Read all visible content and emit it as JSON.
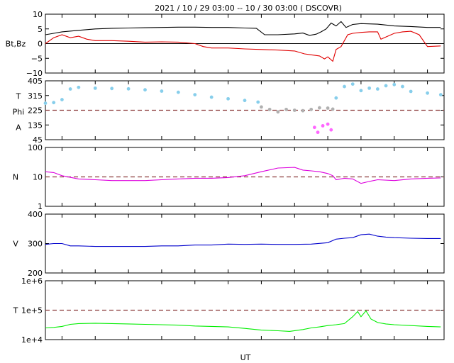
{
  "title": "2021 / 10 / 29   03:00 -- 10 / 30   03:00 ( DSCOVR)",
  "xlabel": "UT",
  "colors": {
    "bt": "#000000",
    "bz": "#e00000",
    "temp": "#87ceeb",
    "phi_mid": "#b0b0b0",
    "phi_low": "#ff66ff",
    "density": "#dd00dd",
    "speed": "#0000cc",
    "thermal": "#00ee00",
    "refline": "#8b3a3a"
  },
  "chart_data": [
    {
      "type": "line",
      "panel": "magnetic",
      "ylabel": "Bt,Bz",
      "ylim": [
        -10,
        10
      ],
      "yticks": [
        "10",
        "5",
        "0",
        "−5",
        "−10"
      ],
      "xlim": [
        3,
        27
      ],
      "xticks": [
        "4",
        "6",
        "8",
        "10",
        "12",
        "14",
        "16",
        "18",
        "20",
        "22",
        "0",
        "2"
      ],
      "refline": 0,
      "series": [
        {
          "key": "bt",
          "x": [
            3,
            3.5,
            4,
            5,
            6,
            7,
            8,
            9,
            10,
            11,
            12,
            13,
            14,
            15,
            15.7,
            16.2,
            17,
            18,
            18.5,
            18.9,
            19.3,
            19.6,
            19.9,
            20.2,
            20.5,
            20.8,
            21.1,
            21.5,
            22,
            23,
            24,
            25,
            26,
            26.8
          ],
          "y": [
            3,
            3.5,
            4,
            4.5,
            5,
            5.2,
            5.3,
            5.4,
            5.5,
            5.6,
            5.6,
            5.5,
            5.5,
            5.3,
            5.2,
            3,
            3,
            3.3,
            3.6,
            2.8,
            3.2,
            4,
            5,
            7,
            6,
            7.5,
            5.5,
            6.5,
            6.8,
            6.6,
            6,
            5.8,
            5.5,
            5.5
          ]
        },
        {
          "key": "bz",
          "x": [
            3,
            3.5,
            4,
            4.5,
            5,
            5.5,
            6,
            7,
            8,
            9,
            10,
            11,
            12,
            12.5,
            13,
            14,
            15,
            16,
            17,
            18,
            18.6,
            19,
            19.5,
            19.8,
            20,
            20.3,
            20.5,
            20.8,
            21,
            21.2,
            21.5,
            22,
            22.5,
            23,
            23.2,
            24,
            24.5,
            25,
            25.5,
            26,
            26.8
          ],
          "y": [
            0,
            2,
            3,
            2,
            2.5,
            1.5,
            1,
            1,
            0.8,
            0.5,
            0.6,
            0.5,
            0,
            -1,
            -1.5,
            -1.5,
            -1.8,
            -2,
            -2.2,
            -2.5,
            -3.5,
            -3.8,
            -4.2,
            -5.2,
            -4.5,
            -6,
            -2,
            -1,
            1,
            3,
            3.5,
            3.8,
            4,
            4,
            1.5,
            3.5,
            4,
            4.2,
            3,
            -1,
            -0.8
          ]
        }
      ]
    },
    {
      "type": "scatter",
      "panel": "temperature-phi",
      "ylabel_lines": [
        "T",
        "Phi",
        "A"
      ],
      "ylim": [
        45,
        405
      ],
      "yticks": [
        "405",
        "315",
        "225",
        "135",
        "45"
      ],
      "xlim": [
        3,
        27
      ],
      "refline": 225,
      "series": [
        {
          "key": "temp",
          "x": [
            3,
            3.5,
            4,
            4.5,
            5,
            6,
            7,
            8,
            9,
            10,
            11,
            12,
            13,
            14,
            15,
            15.8,
            20.5,
            21,
            21.5,
            22,
            22.5,
            23,
            23.5,
            24,
            24.5,
            25,
            26,
            26.8
          ],
          "y": [
            268,
            272,
            290,
            355,
            365,
            360,
            358,
            356,
            350,
            342,
            335,
            320,
            305,
            295,
            285,
            275,
            300,
            370,
            385,
            345,
            360,
            355,
            375,
            382,
            370,
            340,
            330,
            320
          ]
        },
        {
          "key": "phi_mid",
          "x": [
            16,
            16.5,
            17,
            17.5,
            18,
            18.5,
            19,
            19.5,
            20,
            20.3
          ],
          "y": [
            245,
            230,
            215,
            230,
            225,
            222,
            230,
            240,
            238,
            232
          ]
        },
        {
          "key": "phi_low",
          "x": [
            19.2,
            19.4,
            19.7,
            20,
            20.2
          ],
          "y": [
            120,
            90,
            130,
            140,
            105
          ]
        }
      ]
    },
    {
      "type": "line",
      "panel": "density",
      "ylabel": "N",
      "ylim": [
        1,
        100
      ],
      "yticks": [
        "100",
        "10",
        "1"
      ],
      "scale": "log",
      "xlim": [
        3,
        27
      ],
      "refline": 10,
      "series": [
        {
          "key": "density",
          "x": [
            3,
            3.5,
            4,
            5,
            6,
            7,
            8,
            9,
            10,
            11,
            12,
            13,
            14,
            15,
            16,
            17,
            18,
            18.5,
            19,
            19.5,
            20,
            20.3,
            20.5,
            21,
            21.5,
            22,
            22.5,
            23,
            24,
            25,
            26,
            26.8
          ],
          "y": [
            15,
            14,
            11,
            8.5,
            8,
            7.5,
            7.5,
            7.5,
            8,
            8.5,
            9,
            9,
            9.5,
            11,
            15,
            20,
            21,
            17,
            16,
            15,
            13,
            11,
            8,
            9,
            8.5,
            6,
            7,
            8,
            7.5,
            8.5,
            9,
            9.2
          ]
        }
      ]
    },
    {
      "type": "line",
      "panel": "speed",
      "ylabel": "V",
      "ylim": [
        200,
        400
      ],
      "yticks": [
        "400",
        "300",
        "200"
      ],
      "xlim": [
        3,
        27
      ],
      "series": [
        {
          "key": "speed",
          "x": [
            3,
            3.5,
            4,
            4.5,
            5,
            6,
            7,
            8,
            9,
            10,
            11,
            12,
            13,
            14,
            15,
            16,
            17,
            18,
            19,
            20,
            20.5,
            21,
            21.5,
            22,
            22.5,
            23,
            23.5,
            24,
            25,
            26,
            26.8
          ],
          "y": [
            297,
            300,
            300,
            292,
            292,
            290,
            290,
            290,
            290,
            292,
            292,
            295,
            295,
            298,
            297,
            298,
            297,
            297,
            298,
            303,
            315,
            318,
            320,
            330,
            332,
            325,
            322,
            320,
            318,
            317,
            317
          ]
        }
      ]
    },
    {
      "type": "line",
      "panel": "thermal-speed",
      "ylabel": "T",
      "ylim": [
        10000,
        1000000
      ],
      "yticks": [
        "1e+6",
        "1e+5",
        "1e+4"
      ],
      "scale": "log",
      "xlim": [
        3,
        27
      ],
      "refline": 100000,
      "series": [
        {
          "key": "thermal",
          "x": [
            3,
            3.5,
            4,
            4.5,
            5,
            6,
            7,
            8,
            9,
            10,
            11,
            12,
            13,
            14,
            15,
            16,
            17,
            17.7,
            18.5,
            19,
            19.5,
            20,
            20.5,
            21,
            21.5,
            21.8,
            22,
            22.3,
            22.6,
            23,
            23.5,
            24,
            25,
            26,
            26.8
          ],
          "y": [
            25000,
            26000,
            28000,
            33000,
            35000,
            36000,
            35000,
            34000,
            33000,
            32000,
            31000,
            29000,
            28000,
            27000,
            24000,
            21000,
            20000,
            19000,
            22000,
            25000,
            27000,
            30000,
            32000,
            35000,
            60000,
            90000,
            60000,
            95000,
            50000,
            38000,
            34000,
            32000,
            30000,
            28000,
            27000
          ]
        }
      ]
    }
  ]
}
